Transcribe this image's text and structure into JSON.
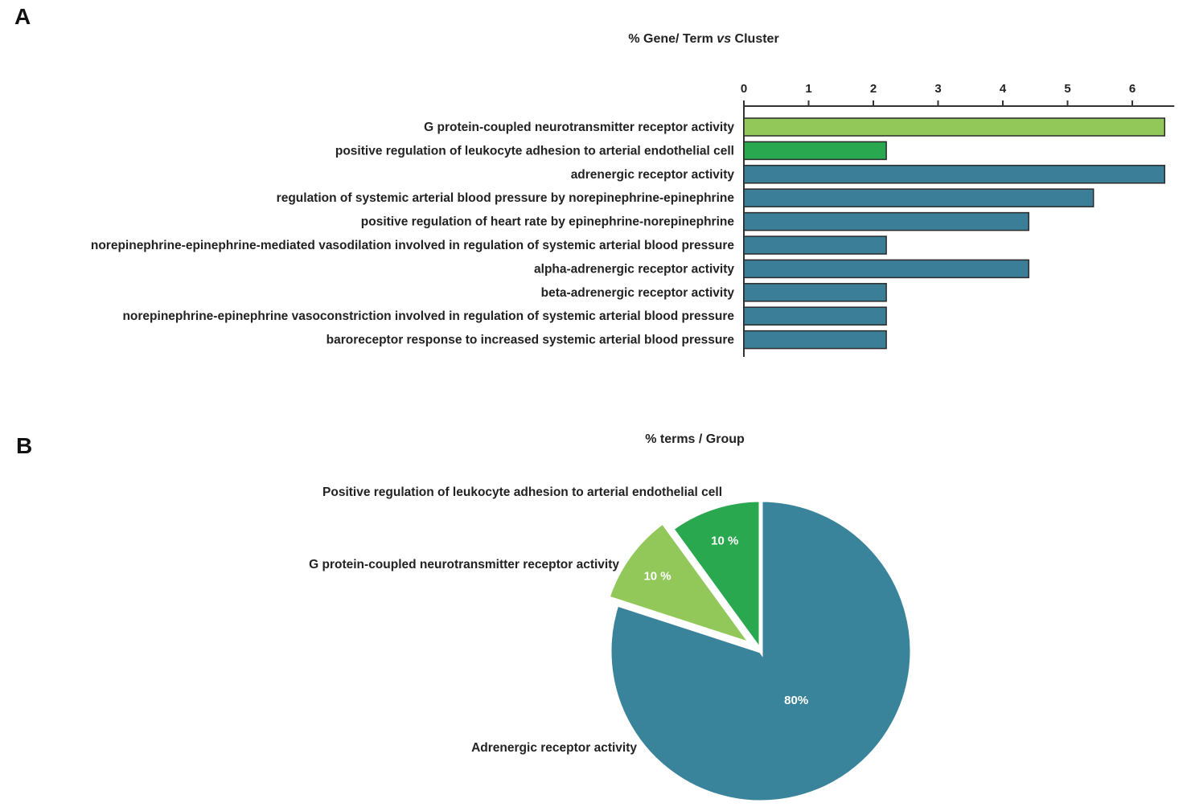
{
  "panels": {
    "a": "A",
    "b": "B"
  },
  "chart_data": [
    {
      "type": "bar",
      "orientation": "horizontal",
      "title_parts": [
        "% Gene/ Term ",
        "vs",
        " Cluster"
      ],
      "xlim": [
        0,
        6.6
      ],
      "ticks": [
        0,
        1,
        2,
        3,
        4,
        5,
        6
      ],
      "tick_labels": [
        "0",
        "1",
        "2",
        "3",
        "4",
        "5",
        "6"
      ],
      "categories": [
        "G protein-coupled neurotransmitter receptor activity",
        "positive regulation of leukocyte adhesion to arterial endothelial cell",
        "adrenergic receptor activity",
        "regulation of systemic arterial blood pressure by norepinephrine-epinephrine",
        "positive regulation of heart rate by epinephrine-norepinephrine",
        "norepinephrine-epinephrine-mediated vasodilation involved in regulation of systemic arterial blood pressure",
        "alpha-adrenergic receptor activity",
        "beta-adrenergic receptor activity",
        "norepinephrine-epinephrine vasoconstriction involved in regulation of systemic arterial blood pressure",
        "baroreceptor response to increased systemic arterial blood pressure"
      ],
      "values": [
        6.5,
        2.2,
        6.5,
        5.4,
        4.4,
        2.2,
        4.4,
        2.2,
        2.2,
        2.2
      ],
      "colors": [
        "#92c85a",
        "#2aa84f",
        "#3a7f97",
        "#3a7f97",
        "#3a7f97",
        "#3a7f97",
        "#3a7f97",
        "#3a7f97",
        "#3a7f97",
        "#3a7f97"
      ],
      "grid": false,
      "legend": "none"
    },
    {
      "type": "pie",
      "title": "% terms / Group",
      "slices": [
        {
          "label": "Adrenergic receptor activity",
          "value": 80,
          "display": "80%",
          "color": "#3a849b"
        },
        {
          "label": "G protein-coupled neurotransmitter receptor activity",
          "value": 10,
          "display": "10 %",
          "color": "#92c85a",
          "exploded": true
        },
        {
          "label": "Positive regulation of leukocyte adhesion to arterial endothelial cell",
          "value": 10,
          "display": "10 %",
          "color": "#2aa84f"
        }
      ],
      "legend": "none"
    }
  ]
}
